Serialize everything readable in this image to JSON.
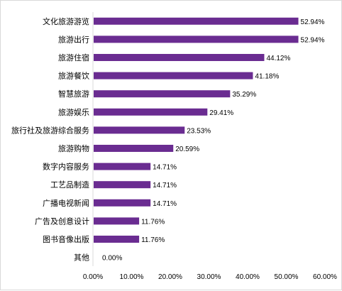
{
  "chart_data": {
    "type": "bar",
    "orientation": "horizontal",
    "title": "",
    "xlabel": "",
    "ylabel": "",
    "categories": [
      "文化旅游游览",
      "旅游出行",
      "旅游住宿",
      "旅游餐饮",
      "智慧旅游",
      "旅游娱乐",
      "旅行社及旅游综合服务",
      "旅游购物",
      "数字内容服务",
      "工艺品制造",
      "广播电视新闻",
      "广告及创意设计",
      "图书音像出版",
      "其他"
    ],
    "values": [
      52.94,
      52.94,
      44.12,
      41.18,
      35.29,
      29.41,
      23.53,
      20.59,
      14.71,
      14.71,
      14.71,
      11.76,
      11.76,
      0.0
    ],
    "value_labels": [
      "52.94%",
      "52.94%",
      "44.12%",
      "41.18%",
      "35.29%",
      "29.41%",
      "23.53%",
      "20.59%",
      "14.71%",
      "14.71%",
      "14.71%",
      "11.76%",
      "11.76%",
      "0.00%"
    ],
    "xlim": [
      0,
      60
    ],
    "xticks": [
      "0.00%",
      "10.00%",
      "20.00%",
      "30.00%",
      "40.00%",
      "50.00%",
      "60.00%"
    ],
    "grid": false,
    "legend": "none",
    "bar_color": "#6a2c91"
  }
}
